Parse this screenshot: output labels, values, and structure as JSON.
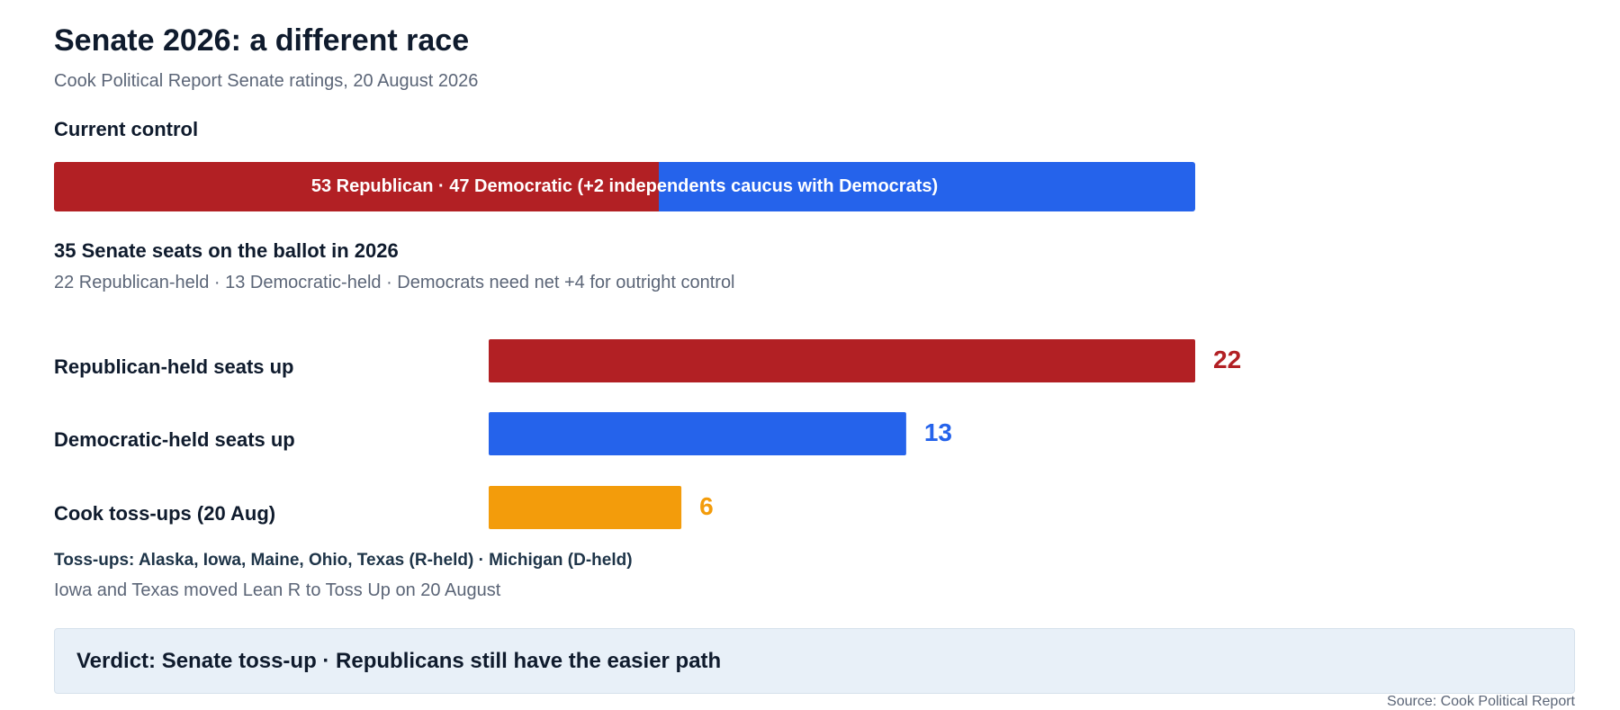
{
  "title": "Senate 2026: a different race",
  "subtitle": "Cook Political Report Senate ratings, 20 August 2026",
  "current_control": {
    "heading": "Current control",
    "label": "53 Republican · 47 Democratic (+2 independents caucus with Democrats)",
    "republican_seats": 53,
    "democratic_seats": 47
  },
  "ballot": {
    "heading": "35 Senate seats on the ballot in 2026",
    "subheading": "22 Republican-held · 13 Democratic-held · Democrats need net +4 for outright control"
  },
  "colors": {
    "republican": "#b22024",
    "democratic": "#2563eb",
    "tossup": "#f39c0b"
  },
  "chart_data": {
    "type": "bar",
    "orientation": "horizontal",
    "categories": [
      "Republican-held seats up",
      "Democratic-held seats up",
      "Cook toss-ups (20 Aug)"
    ],
    "values": [
      22,
      13,
      6
    ],
    "colors": [
      "#b22024",
      "#2563eb",
      "#f39c0b"
    ],
    "xlim": [
      0,
      22
    ]
  },
  "tossups": {
    "states": "Toss-ups: Alaska, Iowa, Maine, Ohio, Texas (R-held) · Michigan (D-held)",
    "note": "Iowa and Texas moved Lean R to Toss Up on 20 August"
  },
  "verdict": "Verdict: Senate toss-up · Republicans still have the easier path",
  "source": "Source: Cook Political Report"
}
